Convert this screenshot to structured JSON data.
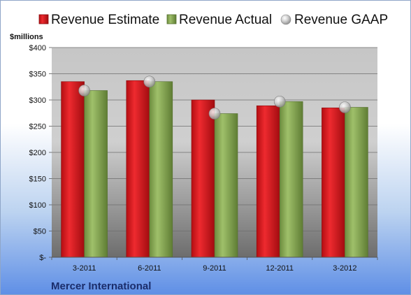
{
  "chart_data": {
    "type": "bar",
    "unit_label": "$millions",
    "categories": [
      "3-2011",
      "6-2011",
      "9-2011",
      "12-2011",
      "3-2012"
    ],
    "series": [
      {
        "name": "Revenue Estimate",
        "kind": "bar",
        "color": "#d9151b",
        "values": [
          335,
          337,
          300,
          289,
          285
        ]
      },
      {
        "name": "Revenue Actual",
        "kind": "bar",
        "color": "#8eb05a",
        "values": [
          318,
          335,
          274,
          297,
          286
        ]
      },
      {
        "name": "Revenue GAAP",
        "kind": "marker",
        "color": "#c8c8c8",
        "values": [
          318,
          335,
          274,
          297,
          286
        ]
      }
    ],
    "ylim": [
      0,
      400
    ],
    "yticks": [
      0,
      50,
      100,
      150,
      200,
      250,
      300,
      350,
      400
    ],
    "ytick_labels": [
      "$-",
      "$50",
      "$100",
      "$150",
      "$200",
      "$250",
      "$300",
      "$350",
      "$400"
    ],
    "grid": true,
    "legend_position": "top",
    "footer_text": "Mercer International"
  }
}
